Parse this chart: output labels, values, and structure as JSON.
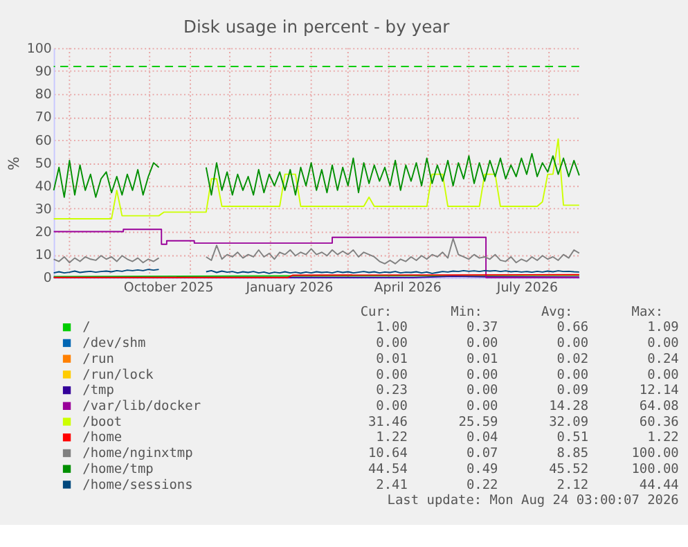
{
  "chart_data": {
    "type": "line",
    "title": "Disk usage in percent - by year",
    "ylabel": "%",
    "xlim": [
      "2025-07-20",
      "2026-08-24"
    ],
    "ylim": [
      0,
      100
    ],
    "yticks": [
      0,
      10,
      20,
      30,
      40,
      50,
      60,
      70,
      80,
      90,
      100
    ],
    "xticks": [
      {
        "value": "2025-08-01",
        "label": null
      },
      {
        "value": "2025-09-01",
        "label": null
      },
      {
        "value": "2025-10-01",
        "label": null
      },
      {
        "value": "2025-11-01",
        "label": null
      },
      {
        "value": "2025-12-01",
        "label": null
      },
      {
        "value": "2026-01-01",
        "label": null
      },
      {
        "value": "2026-02-01",
        "label": null
      },
      {
        "value": "2026-03-01",
        "label": null
      },
      {
        "value": "2026-04-01",
        "label": null
      },
      {
        "value": "2026-05-01",
        "label": null
      },
      {
        "value": "2026-06-01",
        "label": null
      },
      {
        "value": "2026-07-01",
        "label": null
      },
      {
        "value": "2026-08-01",
        "label": null
      },
      {
        "value": "2025-10-15",
        "label": "October 2025"
      },
      {
        "value": "2026-01-15",
        "label": "January 2026"
      },
      {
        "value": "2026-04-15",
        "label": "April 2026"
      },
      {
        "value": "2026-07-15",
        "label": "July 2026"
      }
    ],
    "grid": true,
    "legend": "bottom",
    "ref_lines": [
      {
        "axis": "y",
        "value": 92,
        "color": "#00cc00",
        "line_style": "dashed"
      }
    ],
    "x": [
      "2025-07-20",
      "2025-07-24",
      "2025-07-28",
      "2025-08-01",
      "2025-08-05",
      "2025-08-09",
      "2025-08-13",
      "2025-08-17",
      "2025-08-21",
      "2025-08-25",
      "2025-08-29",
      "2025-09-02",
      "2025-09-06",
      "2025-09-10",
      "2025-09-14",
      "2025-09-18",
      "2025-09-22",
      "2025-09-26",
      "2025-09-30",
      "2025-10-04",
      "2025-10-08",
      "2025-10-12",
      "2025-10-16",
      "2025-10-20",
      "2025-10-24",
      "2025-10-28",
      "2025-11-01",
      "2025-11-05",
      "2025-11-09",
      "2025-11-13",
      "2025-11-17",
      "2025-11-21",
      "2025-11-25",
      "2025-11-29",
      "2025-12-03",
      "2025-12-07",
      "2025-12-11",
      "2025-12-15",
      "2025-12-19",
      "2025-12-23",
      "2025-12-27",
      "2025-12-31",
      "2026-01-04",
      "2026-01-08",
      "2026-01-12",
      "2026-01-16",
      "2026-01-20",
      "2026-01-24",
      "2026-01-28",
      "2026-02-01",
      "2026-02-05",
      "2026-02-09",
      "2026-02-13",
      "2026-02-17",
      "2026-02-21",
      "2026-02-25",
      "2026-03-01",
      "2026-03-05",
      "2026-03-09",
      "2026-03-13",
      "2026-03-17",
      "2026-03-21",
      "2026-03-25",
      "2026-03-29",
      "2026-04-02",
      "2026-04-06",
      "2026-04-10",
      "2026-04-14",
      "2026-04-18",
      "2026-04-22",
      "2026-04-26",
      "2026-04-30",
      "2026-05-04",
      "2026-05-08",
      "2026-05-12",
      "2026-05-16",
      "2026-05-20",
      "2026-05-24",
      "2026-05-28",
      "2026-06-01",
      "2026-06-05",
      "2026-06-09",
      "2026-06-13",
      "2026-06-17",
      "2026-06-21",
      "2026-06-25",
      "2026-06-29",
      "2026-07-03",
      "2026-07-07",
      "2026-07-11",
      "2026-07-15",
      "2026-07-19",
      "2026-07-23",
      "2026-07-27",
      "2026-07-31",
      "2026-08-04",
      "2026-08-08",
      "2026-08-12",
      "2026-08-16",
      "2026-08-20",
      "2026-08-24"
    ],
    "series": [
      {
        "name": "/",
        "color": "#00cc00",
        "x": [
          "2025-07-20",
          "2026-01-15",
          "2026-08-24"
        ],
        "values": [
          0.4,
          0.7,
          1.0
        ]
      },
      {
        "name": "/dev/shm",
        "color": "#0066b3",
        "values": [
          null,
          null,
          null,
          null,
          null,
          null,
          null,
          null,
          null,
          null,
          null,
          null,
          null,
          null,
          null,
          null,
          null,
          null,
          null,
          null,
          null,
          null,
          null,
          null,
          null,
          null,
          null,
          null,
          null,
          null,
          null,
          null,
          null,
          null,
          null,
          null,
          null,
          null,
          null,
          null,
          null,
          null,
          null,
          null,
          null,
          null,
          null,
          null,
          null,
          null,
          null,
          null,
          null,
          null,
          null,
          null,
          null,
          null,
          null,
          null,
          null,
          null,
          null,
          null,
          null,
          null,
          null,
          null,
          null,
          null,
          null,
          null,
          null,
          null,
          null,
          null,
          null,
          null,
          null,
          null,
          null,
          null,
          null,
          null,
          null,
          null,
          null,
          null,
          null,
          null,
          null,
          null,
          null,
          null,
          null,
          null,
          null,
          null,
          null,
          null,
          null
        ]
      },
      {
        "name": "/run",
        "color": "#ff8000",
        "values": [
          null,
          null,
          null,
          null,
          null,
          null,
          null,
          null,
          null,
          null,
          null,
          null,
          null,
          null,
          null,
          null,
          null,
          null,
          null,
          null,
          null,
          null,
          null,
          null,
          null,
          null,
          null,
          null,
          null,
          null,
          null,
          null,
          null,
          null,
          null,
          null,
          null,
          null,
          null,
          null,
          null,
          null,
          null,
          null,
          null,
          null,
          null,
          null,
          null,
          null,
          null,
          null,
          null,
          null,
          null,
          null,
          null,
          null,
          null,
          null,
          null,
          null,
          null,
          null,
          null,
          null,
          null,
          null,
          null,
          null,
          null,
          null,
          null,
          null,
          null,
          null,
          null,
          null,
          null,
          null,
          null,
          null,
          null,
          null,
          null,
          null,
          null,
          null,
          null,
          null,
          null,
          null,
          null,
          null,
          null,
          null,
          null,
          null,
          null,
          null,
          null
        ]
      },
      {
        "name": "/run/lock",
        "color": "#ffcc00",
        "values": [
          null,
          null,
          null,
          null,
          null,
          null,
          null,
          null,
          null,
          null,
          null,
          null,
          null,
          null,
          null,
          null,
          null,
          null,
          null,
          null,
          null,
          null,
          null,
          null,
          null,
          null,
          null,
          null,
          null,
          null,
          null,
          null,
          null,
          null,
          null,
          null,
          null,
          null,
          null,
          null,
          null,
          null,
          null,
          null,
          null,
          null,
          null,
          null,
          null,
          null,
          null,
          null,
          null,
          null,
          null,
          null,
          null,
          null,
          null,
          null,
          null,
          null,
          null,
          null,
          null,
          null,
          null,
          null,
          null,
          null,
          null,
          null,
          null,
          null,
          null,
          null,
          null,
          null,
          null,
          null,
          null,
          null,
          null,
          null,
          null,
          null,
          null,
          null,
          null,
          null,
          null,
          null,
          null,
          null,
          null,
          null,
          null,
          null,
          null,
          null,
          null
        ]
      },
      {
        "name": "/tmp",
        "color": "#330099",
        "x": [
          "2025-07-20",
          "2026-04-20",
          "2026-05-20",
          "2026-06-14",
          "2026-08-24"
        ],
        "values": [
          0,
          0,
          0.5,
          0.3,
          0.2
        ]
      },
      {
        "name": "/var/lib/docker",
        "color": "#990099",
        "type": "step",
        "x": [
          "2025-07-20",
          "2025-09-11",
          "2025-10-10",
          "2025-10-14",
          "2025-11-04",
          "2026-02-17",
          "2026-06-14",
          "2026-08-24"
        ],
        "values": [
          20,
          21,
          14.5,
          16,
          15,
          17.5,
          0,
          0
        ]
      },
      {
        "name": "/boot",
        "color": "#ccff00",
        "values": [
          25.6,
          25.6,
          25.6,
          25.6,
          25.6,
          25.6,
          25.6,
          25.6,
          25.6,
          25.6,
          25.6,
          25.6,
          38,
          26.9,
          26.9,
          26.9,
          26.9,
          26.9,
          26.9,
          26.9,
          26.9,
          28.5,
          28.5,
          28.5,
          28.5,
          28.5,
          28.5,
          28.5,
          28.5,
          28.5,
          43,
          43,
          31,
          31,
          31,
          31,
          31,
          31,
          31,
          31,
          31,
          31,
          31,
          31,
          45,
          45,
          45,
          31,
          31,
          31,
          31,
          31,
          31,
          31,
          31,
          31,
          31,
          31,
          31,
          31,
          35,
          31,
          31,
          31,
          31,
          31,
          31,
          31,
          31,
          31,
          31,
          31,
          45,
          45,
          45,
          31,
          31,
          31,
          31,
          31,
          31,
          31,
          45,
          45,
          45,
          31,
          31,
          31,
          31,
          31,
          31,
          31,
          31,
          33,
          45,
          45,
          60.4,
          31.5,
          31.5,
          31.5,
          31.5
        ]
      },
      {
        "name": "/home",
        "color": "#ff0000",
        "x": [
          "2025-07-20",
          "2026-01-14",
          "2026-01-18",
          "2026-08-24"
        ],
        "values": [
          0,
          0,
          1.0,
          1.2
        ]
      },
      {
        "name": "/home/nginxtmp",
        "color": "#808080",
        "values": [
          8,
          7,
          9,
          6.5,
          8.5,
          7,
          9,
          8,
          7.5,
          9.5,
          8,
          9,
          7,
          9.5,
          8,
          7,
          8.5,
          6.5,
          8,
          7,
          8.5,
          null,
          null,
          null,
          null,
          null,
          null,
          null,
          null,
          9,
          7.5,
          14,
          8,
          10,
          9,
          11,
          8.5,
          10,
          9,
          12,
          9,
          10.5,
          8,
          11,
          10,
          12,
          9.5,
          11,
          10,
          12.5,
          10,
          11,
          9.5,
          12,
          10,
          11.5,
          10,
          12,
          9,
          11,
          10,
          9,
          7,
          6,
          7.5,
          6,
          8,
          7,
          9,
          7.5,
          9.5,
          8,
          10,
          9,
          11,
          8.5,
          17,
          10,
          9,
          8,
          10,
          8.5,
          9,
          8,
          10,
          7.5,
          7,
          9,
          6.5,
          8,
          7,
          9,
          7.5,
          9.5,
          8,
          9,
          7.5,
          10,
          8.5,
          12,
          10.6
        ]
      },
      {
        "name": "/home/tmp",
        "color": "#008f00",
        "values": [
          38,
          48,
          35,
          51,
          36,
          49,
          38,
          45,
          35,
          43,
          46,
          37,
          44,
          36,
          45,
          38,
          47,
          36,
          44,
          50,
          48,
          null,
          null,
          null,
          null,
          null,
          null,
          null,
          null,
          48,
          36,
          50,
          38,
          46,
          36,
          45,
          38,
          44,
          36,
          47,
          37,
          45,
          40,
          46,
          38,
          47,
          36,
          48,
          40,
          50,
          38,
          47,
          37,
          49,
          38,
          48,
          40,
          52,
          37,
          50,
          41,
          49,
          42,
          48,
          40,
          51,
          38,
          49,
          42,
          50,
          40,
          52,
          41,
          49,
          42,
          51,
          40,
          50,
          43,
          53,
          41,
          50,
          42,
          51,
          44,
          52,
          43,
          49,
          44,
          52,
          45,
          54,
          44,
          50,
          46,
          53,
          45,
          52,
          44,
          51,
          44.5
        ]
      },
      {
        "name": "/home/sessions",
        "color": "#00487d",
        "values": [
          2,
          2.5,
          2,
          2.3,
          2.8,
          2.2,
          2.5,
          2.7,
          2.3,
          2.6,
          2.8,
          2.5,
          3,
          2.7,
          3.2,
          3,
          3.3,
          3,
          3.5,
          3.2,
          3.5,
          null,
          null,
          null,
          null,
          null,
          null,
          null,
          null,
          2.5,
          3,
          2.2,
          2.8,
          2.3,
          2.6,
          2,
          2.5,
          2.2,
          2.6,
          2,
          2.4,
          1.8,
          2.3,
          2,
          2.5,
          2,
          2.3,
          1.9,
          2.4,
          2,
          2.5,
          2.2,
          2.4,
          2,
          2.6,
          2.2,
          2.5,
          2,
          2.3,
          2.6,
          2.2,
          2.5,
          2,
          2.4,
          2.2,
          2.6,
          2,
          2.3,
          2.2,
          2.5,
          2,
          2.4,
          1.8,
          2.2,
          2.6,
          2.4,
          2.8,
          2.6,
          3,
          2.7,
          2.9,
          2.6,
          3,
          2.8,
          3,
          2.6,
          2.9,
          2.5,
          2.7,
          2.4,
          2.6,
          2.3,
          2.7,
          2.4,
          2.8,
          2.5,
          2.9,
          2.6,
          2.7,
          2.5,
          2.4
        ]
      }
    ],
    "annotations": [
      "Cur: Min: Avg: Max:",
      "1.00 0.37 0.66 1.09",
      "0.00 0.00 0.00 0.00",
      "0.01 0.01 0.02 0.24",
      "0.00 0.00 0.00 0.00",
      "0.23 0.00 0.09 12.14",
      "0.00 0.00 14.28 64.08",
      "31.46 25.59 32.09 60.36",
      "1.22 0.04 0.51 1.22",
      "10.64 0.07 8.85 100.00",
      "44.54 0.49 45.52 100.00",
      "2.41 0.22 2.12 44.44",
      "Last update: Mon Aug 24 03:00:07 2026"
    ]
  }
}
